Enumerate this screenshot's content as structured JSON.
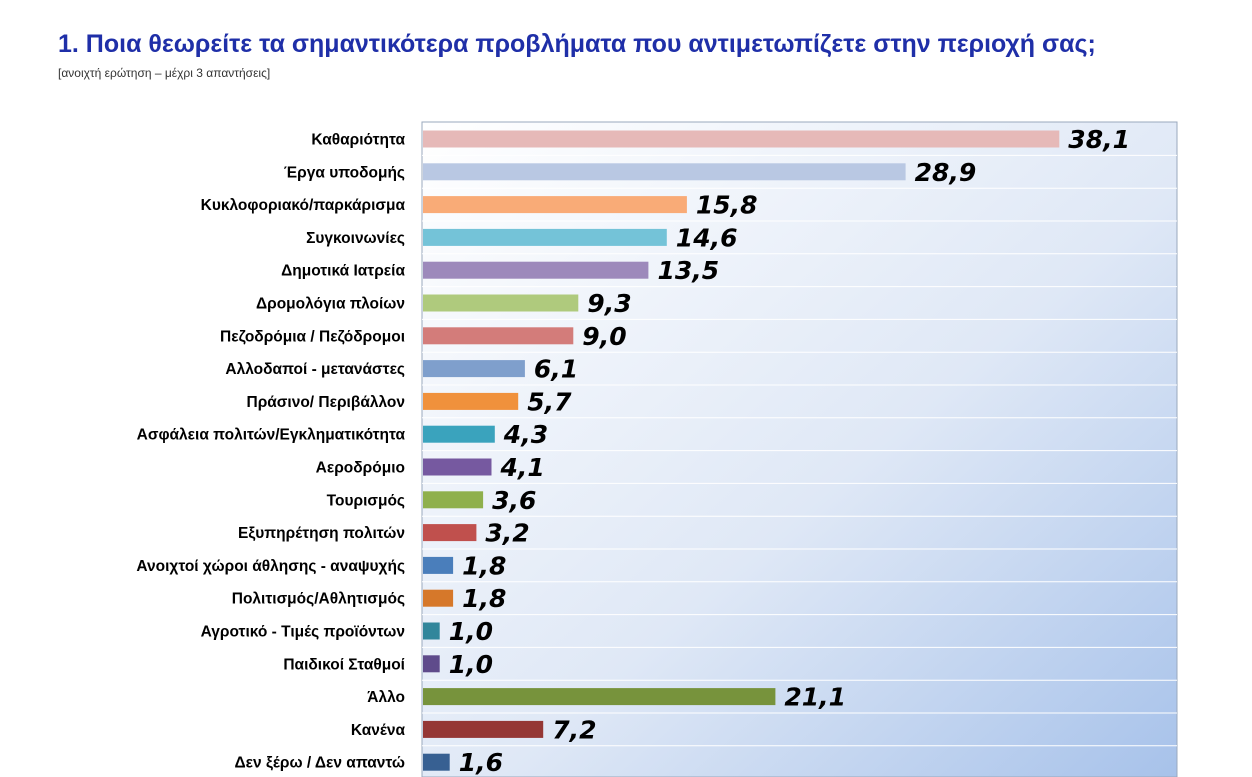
{
  "header": {
    "title": "1. Ποια θεωρείτε τα σημαντικότερα προβλήματα που αντιμετωπίζετε στην περιοχή σας;",
    "subtitle": "[ανοιχτή ερώτηση – μέχρι 3 απαντήσεις]"
  },
  "chart_data": {
    "type": "bar",
    "orientation": "horizontal",
    "title": "1. Ποια θεωρείτε τα σημαντικότερα προβλήματα που αντιμετωπίζετε στην περιοχή σας;",
    "subtitle": "[ανοιχτή ερώτηση – μέχρι 3 απαντήσεις]",
    "xlabel": "",
    "ylabel": "",
    "xlim": [
      0,
      40
    ],
    "grid": true,
    "legend": "none",
    "categories": [
      "Καθαριότητα",
      "Έργα υποδομής",
      "Κυκλοφοριακό/παρκάρισμα",
      "Συγκοινωνίες",
      "Δημοτικά Ιατρεία",
      "Δρομολόγια πλοίων",
      "Πεζοδρόμια / Πεζόδρομοι",
      "Αλλοδαποί - μετανάστες",
      "Πράσινο/ Περιβάλλον",
      "Ασφάλεια πολιτών/Εγκληματικότητα",
      "Αεροδρόμιο",
      "Τουρισμός",
      "Εξυπηρέτηση πολιτών",
      "Ανοιχτοί χώροι άθλησης - αναψυχής",
      "Πολιτισμός/Αθλητισμός",
      "Αγροτικό - Τιμές προϊόντων",
      "Παιδικοί Σταθμοί",
      "Άλλο",
      "Κανένα",
      "Δεν ξέρω / Δεν απαντώ"
    ],
    "values": [
      38.1,
      28.9,
      15.8,
      14.6,
      13.5,
      9.3,
      9.0,
      6.1,
      5.7,
      4.3,
      4.1,
      3.6,
      3.2,
      1.8,
      1.8,
      1.0,
      1.0,
      21.1,
      7.2,
      1.6
    ],
    "value_labels": [
      "38,1",
      "28,9",
      "15,8",
      "14,6",
      "13,5",
      "9,3",
      "9,0",
      "6,1",
      "5,7",
      "4,3",
      "4,1",
      "3,6",
      "3,2",
      "1,8",
      "1,8",
      "1,0",
      "1,0",
      "21,1",
      "7,2",
      "1,6"
    ],
    "colors": [
      "#e6b9b8",
      "#b9c8e3",
      "#f9ab77",
      "#74c3d8",
      "#9d89bb",
      "#afca7d",
      "#d37c7a",
      "#7f9fcc",
      "#f0913c",
      "#3aa3bd",
      "#7659a0",
      "#8fb04c",
      "#c0504d",
      "#4a7ebb",
      "#d6782a",
      "#31869b",
      "#5f4b8b",
      "#77933c",
      "#953735",
      "#376092"
    ]
  }
}
